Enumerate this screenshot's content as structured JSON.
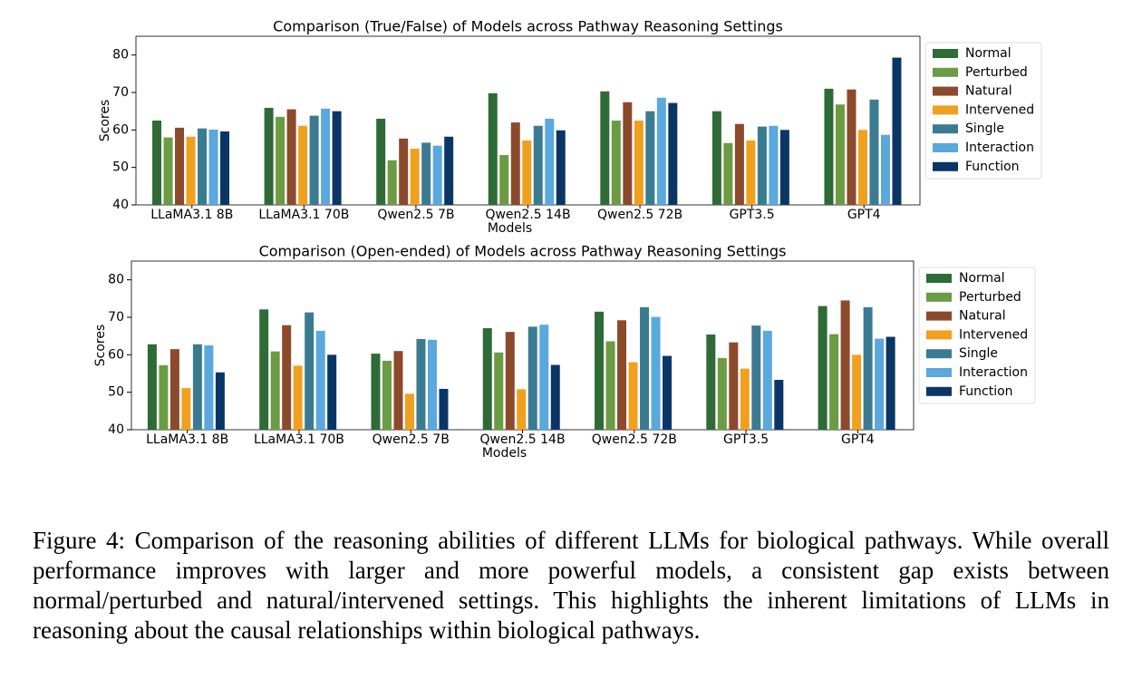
{
  "chart_data": [
    {
      "type": "bar",
      "title": "Comparison (True/False) of Models across Pathway Reasoning Settings",
      "x_label": "Models",
      "y_label": "Scores",
      "categories": [
        "LLaMA3.1 8B",
        "LLaMA3.1 70B",
        "Qwen2.5 7B",
        "Qwen2.5 14B",
        "Qwen2.5 72B",
        "GPT3.5",
        "GPT4"
      ],
      "series": [
        {
          "name": "Normal",
          "color": "#2e6b36",
          "values": [
            62.5,
            65.9,
            63,
            69.8,
            70.3,
            65,
            71
          ]
        },
        {
          "name": "Perturbed",
          "color": "#6b9b42",
          "values": [
            58,
            63.5,
            51.9,
            53.3,
            62.5,
            56.5,
            66.8
          ]
        },
        {
          "name": "Natural",
          "color": "#8c4a2c",
          "values": [
            60.6,
            65.5,
            57.7,
            62,
            67.4,
            61.6,
            70.8
          ]
        },
        {
          "name": "Intervened",
          "color": "#f0a01f",
          "values": [
            58.2,
            61.1,
            55,
            57.2,
            62.5,
            57.2,
            60
          ]
        },
        {
          "name": "Single",
          "color": "#3b7b92",
          "values": [
            60.4,
            63.8,
            56.6,
            61.1,
            65,
            60.9,
            68.1
          ]
        },
        {
          "name": "Interaction",
          "color": "#5aa8dd",
          "values": [
            60.1,
            65.7,
            55.8,
            63,
            68.6,
            61.1,
            58.7
          ]
        },
        {
          "name": "Function",
          "color": "#0b3567",
          "values": [
            59.6,
            65,
            58.2,
            59.9,
            67.2,
            60,
            79.3
          ]
        }
      ],
      "ylim": [
        40,
        85
      ],
      "yticks": [
        40,
        50,
        60,
        70,
        80
      ],
      "grid": false,
      "legend": "right"
    },
    {
      "type": "bar",
      "title": "Comparison (Open-ended) of Models across Pathway Reasoning Settings",
      "x_label": "Models",
      "y_label": "Scores",
      "categories": [
        "LLaMA3.1 8B",
        "LLaMA3.1 70B",
        "Qwen2.5 7B",
        "Qwen2.5 14B",
        "Qwen2.5 72B",
        "GPT3.5",
        "GPT4"
      ],
      "series": [
        {
          "name": "Normal",
          "color": "#2e6b36",
          "values": [
            62.8,
            72.1,
            60.3,
            67.1,
            71.5,
            65.4,
            73
          ]
        },
        {
          "name": "Perturbed",
          "color": "#6b9b42",
          "values": [
            57.2,
            60.9,
            58.4,
            60.6,
            63.6,
            59.1,
            65.5
          ]
        },
        {
          "name": "Natural",
          "color": "#8c4a2c",
          "values": [
            61.5,
            67.9,
            61,
            66.1,
            69.2,
            63.3,
            74.5
          ]
        },
        {
          "name": "Intervened",
          "color": "#f0a01f",
          "values": [
            51.1,
            57.1,
            49.6,
            50.8,
            58,
            56.3,
            60
          ]
        },
        {
          "name": "Single",
          "color": "#3b7b92",
          "values": [
            62.8,
            71.3,
            64.2,
            67.5,
            72.7,
            67.8,
            72.7
          ]
        },
        {
          "name": "Interaction",
          "color": "#5aa8dd",
          "values": [
            62.5,
            66.4,
            64,
            68,
            70.1,
            66.4,
            64.3
          ]
        },
        {
          "name": "Function",
          "color": "#0b3567",
          "values": [
            55.3,
            60,
            50.9,
            57.3,
            59.7,
            53.3,
            64.8
          ]
        }
      ],
      "ylim": [
        40,
        85
      ],
      "yticks": [
        40,
        50,
        60,
        70,
        80
      ],
      "grid": false,
      "legend": "right"
    }
  ],
  "caption": "Figure 4: Comparison of the reasoning abilities of different LLMs for biological pathways. While overall performance improves with larger and more powerful models, a consistent gap exists between normal/perturbed and natural/intervened settings. This highlights the inherent limitations of LLMs in reasoning about the causal relationships within biological pathways."
}
